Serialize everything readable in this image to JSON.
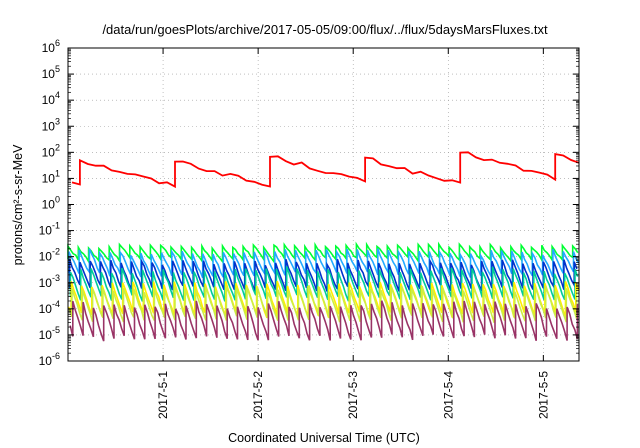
{
  "chart_data": {
    "type": "line",
    "title": "/data/run/goesPlots/archive/2017-05-05/09:00/flux/../flux/5daysMarsFluxes.txt",
    "xlabel": "Coordinated Universal Time (UTC)",
    "ylabel": "protons/cm²-s-sr-MeV",
    "y_scale": "log",
    "ylim": [
      1e-06,
      1000000.0
    ],
    "y_ticks": [
      {
        "base": "10",
        "exp": "-6"
      },
      {
        "base": "10",
        "exp": "-5"
      },
      {
        "base": "10",
        "exp": "-4"
      },
      {
        "base": "10",
        "exp": "-3"
      },
      {
        "base": "10",
        "exp": "-2"
      },
      {
        "base": "10",
        "exp": "-1"
      },
      {
        "base": "10",
        "exp": "0"
      },
      {
        "base": "10",
        "exp": "1"
      },
      {
        "base": "10",
        "exp": "2"
      },
      {
        "base": "10",
        "exp": "3"
      },
      {
        "base": "10",
        "exp": "4"
      },
      {
        "base": "10",
        "exp": "5"
      },
      {
        "base": "10",
        "exp": "6"
      }
    ],
    "xlim": [
      "2017-04-30 00:00",
      "2017-05-05 09:00"
    ],
    "x_ticks": [
      "2017-5-1",
      "2017-5-2",
      "2017-5-3",
      "2017-5-4",
      "2017-5-5"
    ],
    "grid": "dotted",
    "legend": "none",
    "series": [
      {
        "color": "#ff0000",
        "cycle_hours": 24,
        "peak_offset_hours": 3,
        "steps_per_cycle": 12,
        "high": 70,
        "low": 7,
        "jitter": 0.35
      },
      {
        "color": "#00ff33",
        "cycle_hours": 2.6,
        "peak_offset_hours": 0,
        "steps_per_cycle": 4,
        "high": 0.025,
        "low": 0.008,
        "jitter": 0.15
      },
      {
        "color": "#22aaff",
        "cycle_hours": 2.6,
        "peak_offset_hours": 0.2,
        "steps_per_cycle": 4,
        "high": 0.015,
        "low": 0.002,
        "jitter": 0.2
      },
      {
        "color": "#0033cc",
        "cycle_hours": 2.6,
        "peak_offset_hours": 0.4,
        "steps_per_cycle": 4,
        "high": 0.006,
        "low": 0.0006,
        "jitter": 0.2
      },
      {
        "color": "#00cc99",
        "cycle_hours": 2.6,
        "peak_offset_hours": 0.6,
        "steps_per_cycle": 4,
        "high": 0.003,
        "low": 0.00025,
        "jitter": 0.2
      },
      {
        "color": "#ffee00",
        "cycle_hours": 2.6,
        "peak_offset_hours": 0.8,
        "steps_per_cycle": 4,
        "high": 0.0009,
        "low": 6e-05,
        "jitter": 0.2
      },
      {
        "color": "#ccee44",
        "cycle_hours": 2.6,
        "peak_offset_hours": 1.0,
        "steps_per_cycle": 4,
        "high": 0.0006,
        "low": 4e-05,
        "jitter": 0.2
      },
      {
        "color": "#993366",
        "cycle_hours": 2.6,
        "peak_offset_hours": 1.2,
        "steps_per_cycle": 4,
        "high": 0.00015,
        "low": 8e-06,
        "jitter": 0.25
      }
    ]
  }
}
